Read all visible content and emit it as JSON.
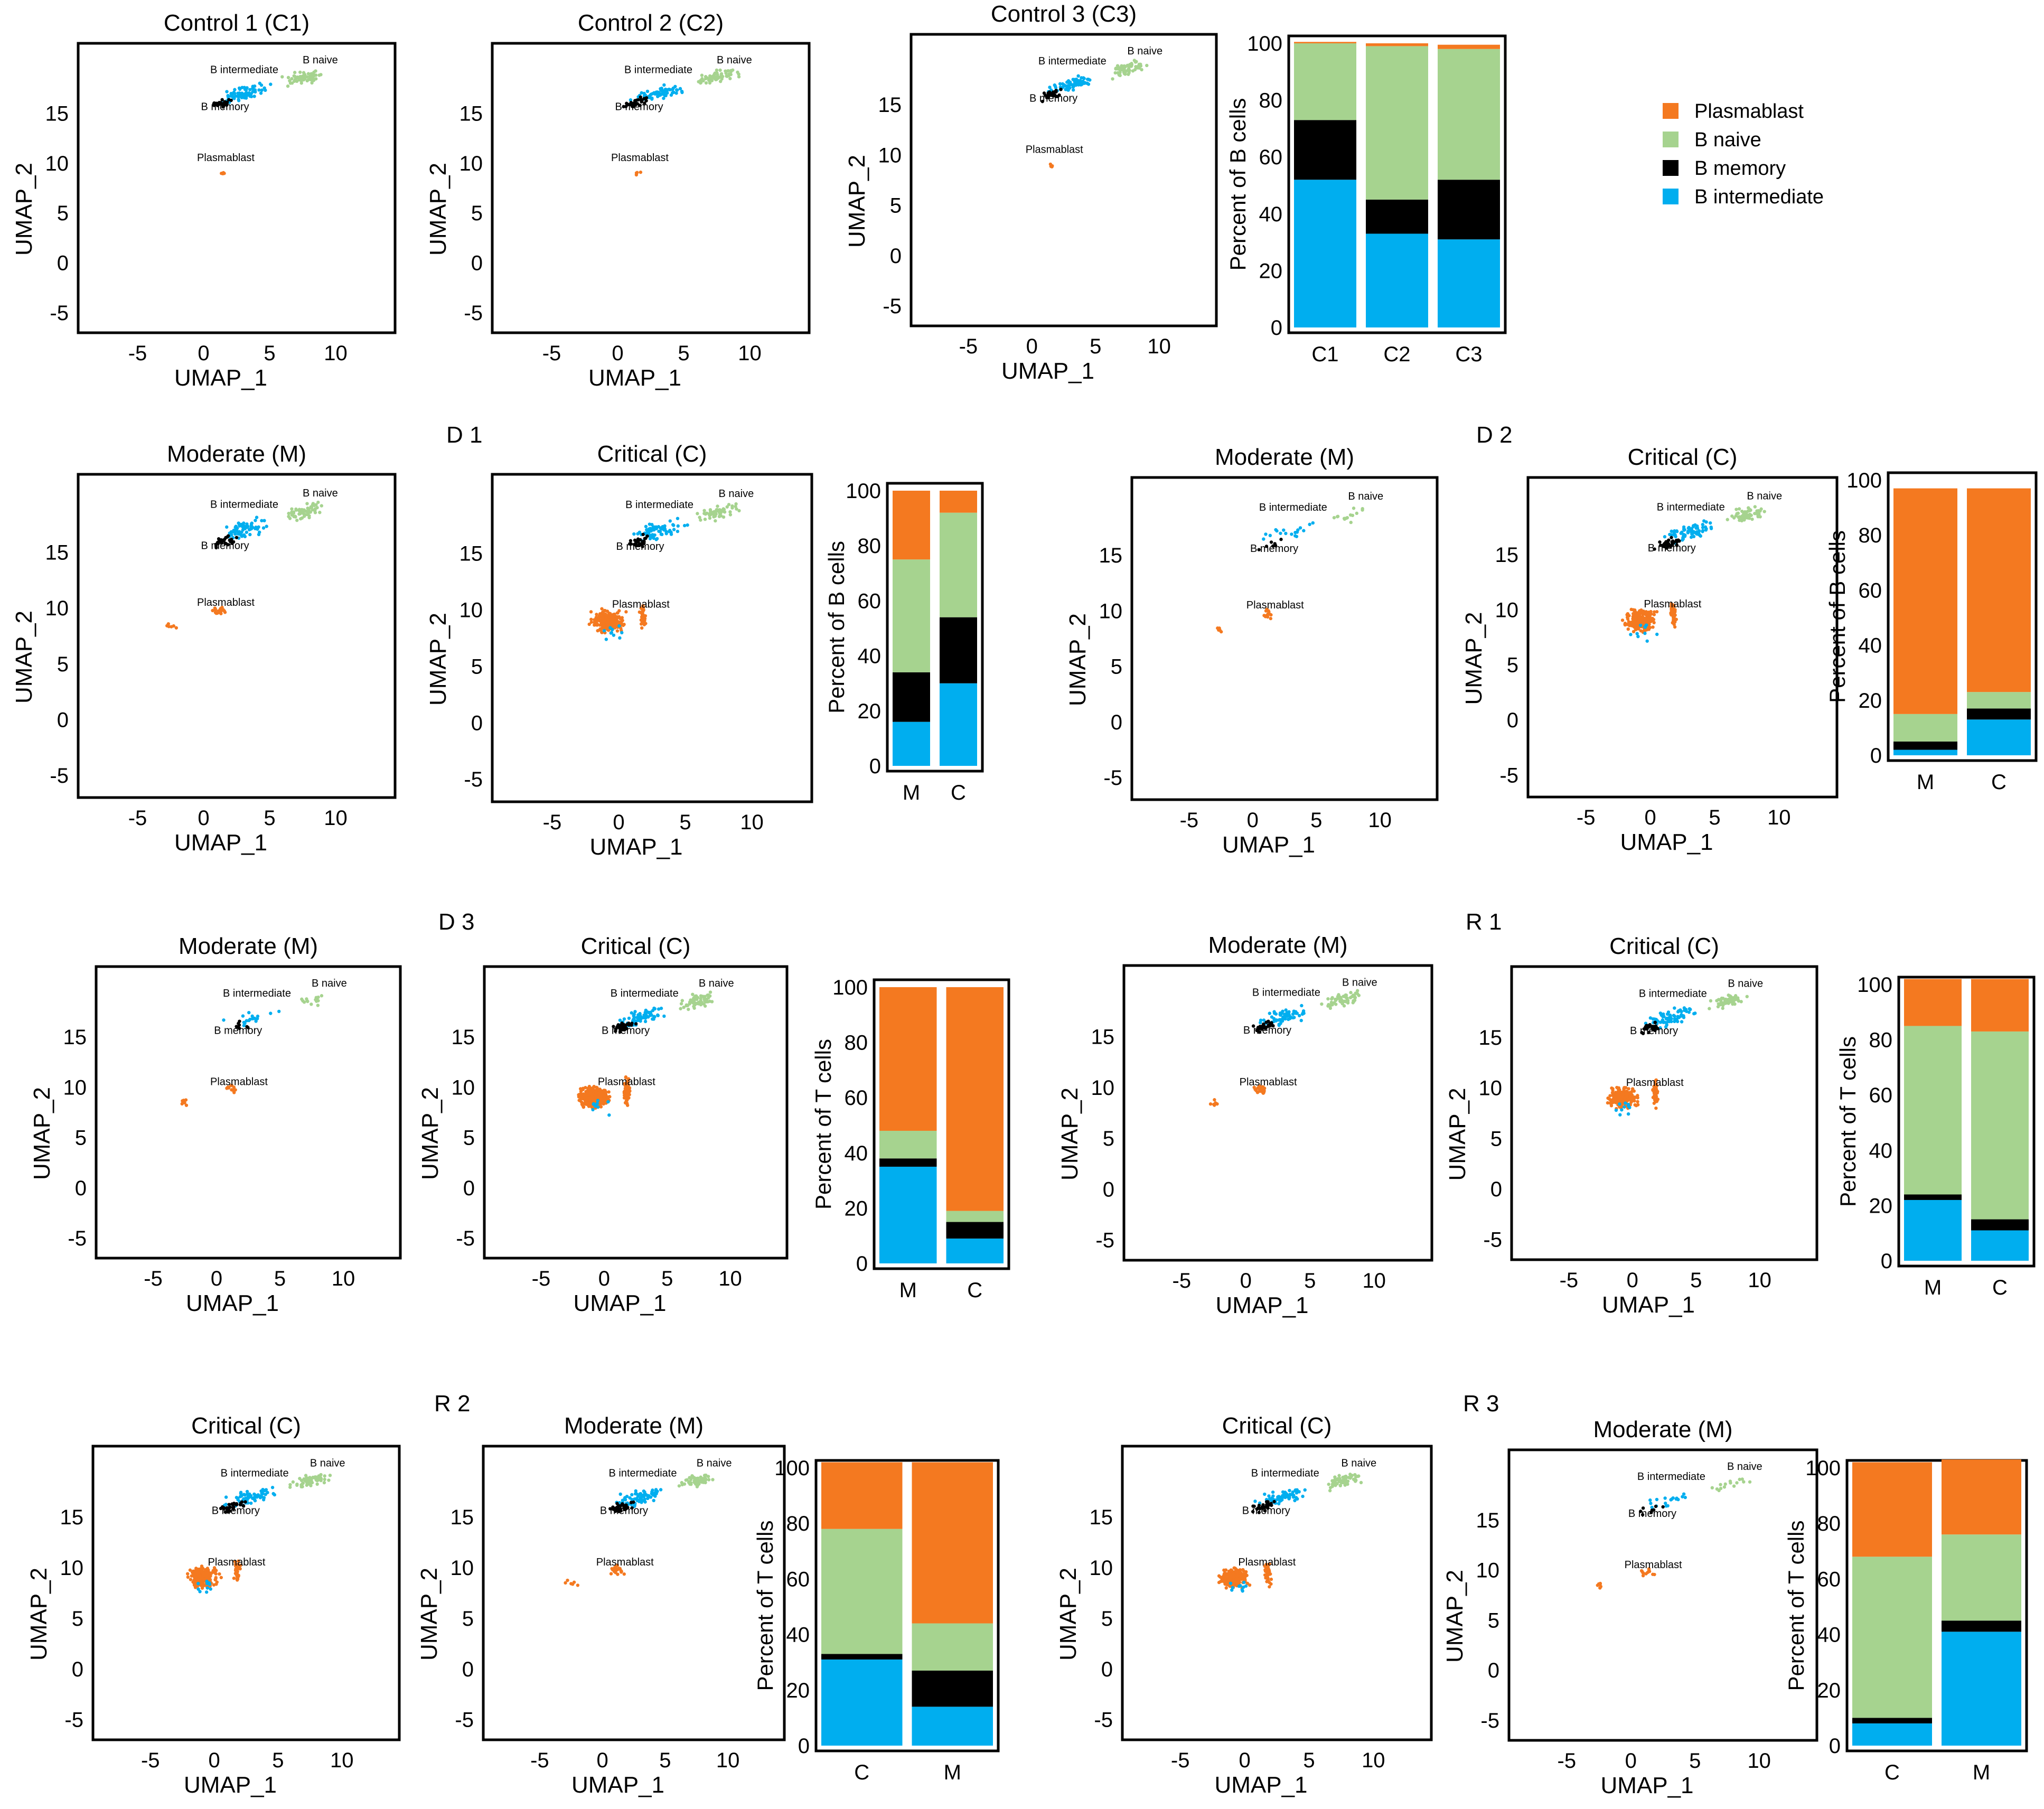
{
  "colors": {
    "plasmablast": "#f47920",
    "b_naive": "#a6d38f",
    "b_memory": "#000000",
    "b_intermediate": "#00aeef"
  },
  "legend": {
    "items": [
      {
        "key": "plasmablast",
        "label": "Plasmablast"
      },
      {
        "key": "b_naive",
        "label": "B naive"
      },
      {
        "key": "b_memory",
        "label": "B memory"
      },
      {
        "key": "b_intermediate",
        "label": "B intermediate"
      }
    ]
  },
  "cluster_labels": {
    "b_intermediate": "B intermediate",
    "b_naive": "B naive",
    "b_memory": "B memory",
    "plasmablast": "Plasmablast"
  },
  "row_labels": [
    "D 1",
    "D 2",
    "D 3",
    "R 1",
    "R 2",
    "R 3"
  ],
  "umap_axes": {
    "xlabel": "UMAP_1",
    "ylabel": "UMAP_2",
    "xticks": [
      "-5",
      "0",
      "5",
      "10"
    ],
    "yticks": [
      "-5",
      "0",
      "5",
      "10",
      "15"
    ]
  },
  "bar_axes": {
    "yticks": [
      "0",
      "20",
      "40",
      "60",
      "80",
      "100"
    ]
  },
  "umap_plots": [
    {
      "id": "c1",
      "title": "Control 1 (C1)",
      "profile": "control"
    },
    {
      "id": "c2",
      "title": "Control 2 (C2)",
      "profile": "control"
    },
    {
      "id": "c3",
      "title": "Control 3 (C3)",
      "profile": "control"
    },
    {
      "id": "d1m",
      "title": "Moderate (M)",
      "profile": "moderate"
    },
    {
      "id": "d1c",
      "title": "Critical (C)",
      "profile": "critical"
    },
    {
      "id": "d2m",
      "title": "Moderate (M)",
      "profile": "moderate_sparse"
    },
    {
      "id": "d2c",
      "title": "Critical (C)",
      "profile": "critical"
    },
    {
      "id": "d3m",
      "title": "Moderate (M)",
      "profile": "moderate_sparse"
    },
    {
      "id": "d3c",
      "title": "Critical (C)",
      "profile": "critical_dense"
    },
    {
      "id": "r1m",
      "title": "Moderate (M)",
      "profile": "moderate"
    },
    {
      "id": "r1c",
      "title": "Critical (C)",
      "profile": "critical"
    },
    {
      "id": "r2c",
      "title": "Critical (C)",
      "profile": "critical"
    },
    {
      "id": "r2m",
      "title": "Moderate (M)",
      "profile": "moderate"
    },
    {
      "id": "r3c",
      "title": "Critical (C)",
      "profile": "critical"
    },
    {
      "id": "r3m",
      "title": "Moderate  (M)",
      "profile": "moderate_sparse"
    }
  ],
  "chart_data": [
    {
      "type": "bar",
      "stacked": true,
      "id": "bar_controls",
      "ylabel": "Percent of B cells",
      "ylim": [
        0,
        100
      ],
      "categories": [
        "C1",
        "C2",
        "C3"
      ],
      "series": [
        {
          "name": "B intermediate",
          "key": "b_intermediate",
          "values": [
            52,
            33,
            31
          ]
        },
        {
          "name": "B memory",
          "key": "b_memory",
          "values": [
            21,
            12,
            21
          ]
        },
        {
          "name": "B naive",
          "key": "b_naive",
          "values": [
            27,
            54,
            46
          ]
        },
        {
          "name": "Plasmablast",
          "key": "plasmablast",
          "values": [
            0.5,
            1,
            1.5
          ]
        }
      ]
    },
    {
      "type": "bar",
      "stacked": true,
      "id": "bar_d1",
      "ylabel": "Percent of B cells",
      "ylim": [
        0,
        100
      ],
      "categories": [
        "M",
        "C"
      ],
      "series": [
        {
          "name": "B intermediate",
          "key": "b_intermediate",
          "values": [
            16,
            30
          ]
        },
        {
          "name": "B memory",
          "key": "b_memory",
          "values": [
            18,
            24
          ]
        },
        {
          "name": "B naive",
          "key": "b_naive",
          "values": [
            41,
            38
          ]
        },
        {
          "name": "Plasmablast",
          "key": "plasmablast",
          "values": [
            25,
            8
          ]
        }
      ]
    },
    {
      "type": "bar",
      "stacked": true,
      "id": "bar_d2",
      "ylabel": "Percent of B cells",
      "ylim": [
        0,
        100
      ],
      "categories": [
        "M",
        "C"
      ],
      "series": [
        {
          "name": "B intermediate",
          "key": "b_intermediate",
          "values": [
            2,
            13
          ]
        },
        {
          "name": "B memory",
          "key": "b_memory",
          "values": [
            3,
            4
          ]
        },
        {
          "name": "B naive",
          "key": "b_naive",
          "values": [
            10,
            6
          ]
        },
        {
          "name": "Plasmablast",
          "key": "plasmablast",
          "values": [
            82,
            74
          ]
        }
      ]
    },
    {
      "type": "bar",
      "stacked": true,
      "id": "bar_d3",
      "ylabel": "Percent of T cells",
      "ylim": [
        0,
        100
      ],
      "categories": [
        "M",
        "C"
      ],
      "series": [
        {
          "name": "B intermediate",
          "key": "b_intermediate",
          "values": [
            35,
            9
          ]
        },
        {
          "name": "B memory",
          "key": "b_memory",
          "values": [
            3,
            6
          ]
        },
        {
          "name": "B naive",
          "key": "b_naive",
          "values": [
            10,
            4
          ]
        },
        {
          "name": "Plasmablast",
          "key": "plasmablast",
          "values": [
            52,
            81
          ]
        }
      ]
    },
    {
      "type": "bar",
      "stacked": true,
      "id": "bar_r1",
      "ylabel": "Percent of T cells",
      "ylim": [
        0,
        100
      ],
      "categories": [
        "M",
        "C"
      ],
      "series": [
        {
          "name": "B intermediate",
          "key": "b_intermediate",
          "values": [
            22,
            11
          ]
        },
        {
          "name": "B memory",
          "key": "b_memory",
          "values": [
            2,
            4
          ]
        },
        {
          "name": "B naive",
          "key": "b_naive",
          "values": [
            61,
            68
          ]
        },
        {
          "name": "Plasmablast",
          "key": "plasmablast",
          "values": [
            17,
            19
          ]
        }
      ]
    },
    {
      "type": "bar",
      "stacked": true,
      "id": "bar_r2",
      "ylabel": "Percent of T cells",
      "ylim": [
        0,
        100
      ],
      "categories": [
        "C",
        "M"
      ],
      "series": [
        {
          "name": "B intermediate",
          "key": "b_intermediate",
          "values": [
            31,
            14
          ]
        },
        {
          "name": "B memory",
          "key": "b_memory",
          "values": [
            2,
            13
          ]
        },
        {
          "name": "B naive",
          "key": "b_naive",
          "values": [
            45,
            17
          ]
        },
        {
          "name": "Plasmablast",
          "key": "plasmablast",
          "values": [
            24,
            58
          ]
        }
      ]
    },
    {
      "type": "bar",
      "stacked": true,
      "id": "bar_r3",
      "ylabel": "Percent of T cells",
      "ylim": [
        0,
        100
      ],
      "categories": [
        "C",
        "M"
      ],
      "series": [
        {
          "name": "B intermediate",
          "key": "b_intermediate",
          "values": [
            8,
            41
          ]
        },
        {
          "name": "B memory",
          "key": "b_memory",
          "values": [
            2,
            4
          ]
        },
        {
          "name": "B naive",
          "key": "b_naive",
          "values": [
            58,
            31
          ]
        },
        {
          "name": "Plasmablast",
          "key": "plasmablast",
          "values": [
            34,
            27
          ]
        }
      ]
    }
  ]
}
